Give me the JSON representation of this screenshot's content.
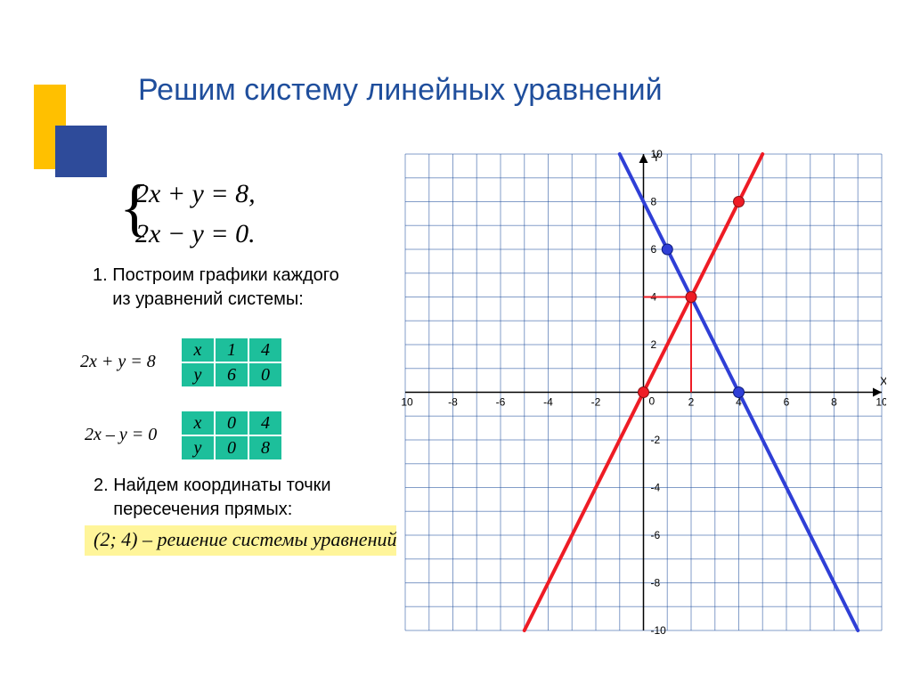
{
  "title": "Решим систему линейных уравнений",
  "decor": {
    "yellow": "#FFC000",
    "blue": "#2E4B9A"
  },
  "system": {
    "eq1": "2x + y = 8,",
    "eq2": "2x − y = 0."
  },
  "step1": {
    "num": "1.",
    "l1": "Построим графики каждого",
    "l2": "из уравнений системы:"
  },
  "eq_line1": "2x + y = 8",
  "eq_line2": "2x – y = 0",
  "table1": {
    "r1": [
      "x",
      "1",
      "4"
    ],
    "r2": [
      "y",
      "6",
      "0"
    ]
  },
  "table2": {
    "r1": [
      "x",
      "0",
      "4"
    ],
    "r2": [
      "y",
      "0",
      "8"
    ]
  },
  "step2": {
    "l1": "2. Найдем координаты точки",
    "l2": "пересечения прямых:"
  },
  "answer": "(2; 4) – решение системы уравнений",
  "chart": {
    "xlim": [
      -10,
      10
    ],
    "ylim": [
      -10,
      10
    ],
    "tick_step": 2,
    "grid_color": "#1F4E9C",
    "grid_width": 1,
    "axis_color": "#000000",
    "axis_width": 1.5,
    "bg_color": "#ffffff",
    "label_fontsize": 12,
    "axis_label_color": "#000000",
    "x_label": "X",
    "y_label": "Y",
    "line_blue": {
      "color": "#2F3FD6",
      "width": 4,
      "p1": [
        -1,
        10
      ],
      "p2": [
        9,
        -10
      ]
    },
    "line_red": {
      "color": "#EE1C25",
      "width": 4,
      "p1": [
        -5,
        -10
      ],
      "p2": [
        5,
        10
      ]
    },
    "guide": {
      "color": "#EE1C25",
      "width": 2,
      "from_y": [
        0,
        4,
        2,
        4
      ],
      "from_x": [
        2,
        4,
        2,
        0
      ]
    },
    "points_blue": [
      [
        1,
        6
      ],
      [
        4,
        0
      ]
    ],
    "points_red": [
      [
        0,
        0
      ],
      [
        4,
        8
      ],
      [
        2,
        4
      ]
    ],
    "point_radius": 6,
    "point_blue_fill": "#2F3FD6",
    "point_red_fill": "#EE1C25"
  }
}
